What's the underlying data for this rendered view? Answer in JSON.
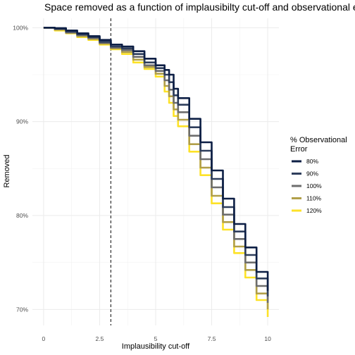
{
  "chart_data": {
    "type": "line",
    "title": "Space removed as a function of implausibilty cut-off and observational error",
    "xlabel": "Implausibility cut-off",
    "ylabel": "Removed",
    "xlim": [
      -0.5,
      10.5
    ],
    "ylim": [
      68.3,
      101.0
    ],
    "x_ticks": [
      0,
      2.5,
      5,
      7.5,
      10
    ],
    "x_tick_labels": [
      "0",
      "2.5",
      "5",
      "7.5",
      "10"
    ],
    "y_ticks": [
      70,
      80,
      90,
      100
    ],
    "y_tick_labels": [
      "70%",
      "80%",
      "90%",
      "100%"
    ],
    "grid": true,
    "reference_line": {
      "x": 3,
      "style": "dashed"
    },
    "legend": {
      "title": [
        "% Observational",
        "Error"
      ],
      "placement": "right"
    },
    "series": [
      {
        "name": "80%",
        "color": "#0d1f45",
        "x": [
          0,
          0.5,
          1.0,
          1.5,
          2.0,
          2.5,
          3.0,
          3.5,
          4.0,
          4.5,
          5.0,
          5.4,
          5.6,
          5.8,
          6.0,
          6.5,
          7.0,
          7.5,
          8.0,
          8.5,
          9.0,
          9.5,
          10.0
        ],
        "y": [
          100,
          99.96,
          99.7,
          99.4,
          99.1,
          98.7,
          98.2,
          98.0,
          97.5,
          96.7,
          96.0,
          95.5,
          95.0,
          93.5,
          92.5,
          90.3,
          87.8,
          84.8,
          81.8,
          79.1,
          76.6,
          74.0,
          72.0
        ]
      },
      {
        "name": "90%",
        "color": "#2e3e5c",
        "x": [
          0,
          0.5,
          1.0,
          1.5,
          2.0,
          2.5,
          3.0,
          3.5,
          4.0,
          4.5,
          5.0,
          5.4,
          5.6,
          5.8,
          6.0,
          6.5,
          7.0,
          7.5,
          8.0,
          8.5,
          9.0,
          9.5,
          10.0
        ],
        "y": [
          100,
          99.9,
          99.6,
          99.3,
          99.0,
          98.5,
          98.0,
          97.8,
          97.2,
          96.3,
          95.7,
          95.0,
          94.2,
          92.8,
          91.8,
          89.4,
          86.9,
          83.9,
          80.9,
          78.3,
          75.8,
          73.3,
          71.4
        ]
      },
      {
        "name": "100%",
        "color": "#6d6d6d",
        "x": [
          0,
          0.5,
          1.0,
          1.5,
          2.0,
          2.5,
          3.0,
          3.5,
          4.0,
          4.5,
          5.0,
          5.4,
          5.6,
          5.8,
          6.0,
          6.5,
          7.0,
          7.5,
          8.0,
          8.5,
          9.0,
          9.5,
          10.0
        ],
        "y": [
          100,
          99.85,
          99.5,
          99.2,
          98.9,
          98.4,
          97.9,
          97.6,
          96.9,
          96.0,
          95.4,
          94.4,
          93.4,
          92.0,
          91.0,
          88.5,
          86.0,
          83.0,
          80.1,
          77.5,
          75.0,
          72.5,
          70.7
        ]
      },
      {
        "name": "110%",
        "color": "#b19f49",
        "x": [
          0,
          0.5,
          1.0,
          1.5,
          2.0,
          2.5,
          3.0,
          3.5,
          4.0,
          4.5,
          5.0,
          5.4,
          5.6,
          5.8,
          6.0,
          6.5,
          7.0,
          7.5,
          8.0,
          8.5,
          9.0,
          9.5,
          10.0
        ],
        "y": [
          100,
          99.8,
          99.45,
          99.1,
          98.8,
          98.3,
          97.8,
          97.4,
          96.6,
          95.8,
          95.1,
          93.8,
          92.7,
          91.3,
          90.2,
          87.6,
          85.1,
          82.1,
          79.3,
          76.7,
          74.2,
          71.7,
          70.0
        ]
      },
      {
        "name": "120%",
        "color": "#fde228",
        "x": [
          0,
          0.5,
          1.0,
          1.5,
          2.0,
          2.5,
          3.0,
          3.5,
          4.0,
          4.5,
          5.0,
          5.4,
          5.6,
          5.8,
          6.0,
          6.5,
          7.0,
          7.5,
          8.0,
          8.5,
          9.0,
          9.5,
          10.0
        ],
        "y": [
          100,
          99.7,
          99.4,
          99.0,
          98.7,
          98.2,
          97.7,
          97.2,
          96.3,
          95.6,
          94.8,
          93.2,
          92.0,
          90.6,
          89.5,
          86.8,
          84.3,
          81.3,
          78.5,
          76.0,
          73.4,
          71.0,
          69.2
        ]
      }
    ]
  }
}
